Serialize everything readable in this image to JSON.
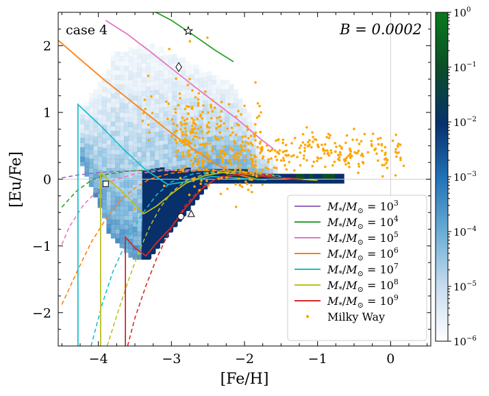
{
  "chart_data": {
    "type": "scatter",
    "panel_label": "case 4",
    "annotation": "B = 0.0002",
    "xlabel": "[Fe/H]",
    "ylabel": "[Eu/Fe]",
    "xlim": [
      -4.55,
      0.55
    ],
    "ylim": [
      -2.5,
      2.5
    ],
    "xticks": [
      -4,
      -3,
      -2,
      -1,
      0
    ],
    "yticks": [
      -2,
      -1,
      0,
      1,
      2
    ],
    "reference_lines": {
      "x": 0,
      "y": 0
    },
    "colorbar": {
      "scale": "log",
      "min": 1e-06,
      "max": 1,
      "ticks": [
        "10^0",
        "10^-1",
        "10^-2",
        "10^-3",
        "10^-4",
        "10^-5",
        "10^-6"
      ],
      "colormap": [
        "#ffffff",
        "#c6dbef",
        "#6baed6",
        "#2171b5",
        "#08306b",
        "#0b4d28",
        "#0a7a1c"
      ]
    },
    "series": [
      {
        "name": "M*/M⊙ = 10^3",
        "label_sup": "3",
        "color": "#9467bd",
        "solid": [],
        "dashed": [
          [
            -4.5,
            0.02
          ],
          [
            -4.3,
            0.06
          ],
          [
            -4.0,
            0.1
          ],
          [
            -3.7,
            0.12
          ],
          [
            -3.3,
            0.13
          ],
          [
            -2.8,
            0.13
          ],
          [
            -2.3,
            0.12
          ],
          [
            -1.9,
            0.08
          ],
          [
            -1.6,
            0.05
          ]
        ]
      },
      {
        "name": "M*/M⊙ = 10^4",
        "label_sup": "4",
        "color": "#2ca02c",
        "solid": [
          [
            -3.3,
            2.55
          ],
          [
            -3.0,
            2.38
          ],
          [
            -2.7,
            2.16
          ],
          [
            -2.4,
            1.93
          ],
          [
            -2.15,
            1.76
          ]
        ],
        "dashed": [
          [
            -4.5,
            -0.42
          ],
          [
            -4.3,
            -0.18
          ],
          [
            -4.1,
            -0.02
          ],
          [
            -3.9,
            0.07
          ],
          [
            -3.6,
            0.12
          ],
          [
            -3.2,
            0.14
          ],
          [
            -2.7,
            0.14
          ],
          [
            -2.2,
            0.13
          ],
          [
            -1.8,
            0.09
          ],
          [
            -1.5,
            0.05
          ]
        ]
      },
      {
        "name": "M*/M⊙ = 10^5",
        "label_sup": "5",
        "color": "#e377c2",
        "solid": [
          [
            -3.9,
            2.38
          ],
          [
            -3.6,
            2.17
          ],
          [
            -3.3,
            1.92
          ],
          [
            -3.0,
            1.66
          ],
          [
            -2.7,
            1.4
          ],
          [
            -2.4,
            1.15
          ],
          [
            -2.1,
            0.9
          ],
          [
            -1.8,
            0.62
          ],
          [
            -1.6,
            0.45
          ]
        ],
        "dashed": [
          [
            -4.5,
            -0.98
          ],
          [
            -4.4,
            -0.72
          ],
          [
            -4.2,
            -0.38
          ],
          [
            -4.0,
            -0.16
          ],
          [
            -3.8,
            -0.02
          ],
          [
            -3.5,
            0.08
          ],
          [
            -3.1,
            0.13
          ],
          [
            -2.6,
            0.14
          ],
          [
            -2.1,
            0.12
          ],
          [
            -1.6,
            0.07
          ]
        ]
      },
      {
        "name": "M*/M⊙ = 10^6",
        "label_sup": "6",
        "color": "#ff7f0e",
        "solid": [
          [
            -4.55,
            2.08
          ],
          [
            -4.2,
            1.75
          ],
          [
            -3.9,
            1.47
          ],
          [
            -3.6,
            1.21
          ],
          [
            -3.3,
            0.95
          ],
          [
            -3.0,
            0.69
          ],
          [
            -2.7,
            0.45
          ],
          [
            -2.4,
            0.23
          ],
          [
            -2.1,
            0.07
          ],
          [
            -1.8,
            -0.01
          ]
        ],
        "dashed": [
          [
            -4.5,
            -1.88
          ],
          [
            -4.3,
            -1.4
          ],
          [
            -4.1,
            -0.95
          ],
          [
            -3.9,
            -0.6
          ],
          [
            -3.7,
            -0.32
          ],
          [
            -3.5,
            -0.13
          ],
          [
            -3.3,
            0.0
          ],
          [
            -3.0,
            0.09
          ],
          [
            -2.6,
            0.13
          ],
          [
            -2.1,
            0.12
          ],
          [
            -1.6,
            0.06
          ]
        ]
      },
      {
        "name": "M*/M⊙ = 10^7",
        "label_sup": "7",
        "color": "#17becf",
        "solid": [
          [
            -4.28,
            -2.5
          ],
          [
            -4.28,
            1.12
          ],
          [
            -3.95,
            0.78
          ],
          [
            -3.65,
            0.44
          ],
          [
            -3.35,
            0.14
          ],
          [
            -3.05,
            -0.08
          ],
          [
            -2.75,
            -0.03
          ],
          [
            -2.45,
            0.04
          ],
          [
            -2.15,
            0.02
          ],
          [
            -1.7,
            -0.01
          ]
        ],
        "dashed": [
          [
            -4.1,
            -2.5
          ],
          [
            -3.95,
            -1.88
          ],
          [
            -3.8,
            -1.38
          ],
          [
            -3.6,
            -0.9
          ],
          [
            -3.4,
            -0.52
          ],
          [
            -3.2,
            -0.23
          ],
          [
            -3.0,
            -0.04
          ],
          [
            -2.7,
            0.08
          ],
          [
            -2.3,
            0.12
          ],
          [
            -1.9,
            0.09
          ],
          [
            -1.5,
            0.04
          ]
        ]
      },
      {
        "name": "M*/M⊙ = 10^8",
        "label_sup": "8",
        "color": "#bcbd22",
        "solid": [
          [
            -3.97,
            -2.5
          ],
          [
            -3.97,
            0.09
          ],
          [
            -3.7,
            -0.16
          ],
          [
            -3.55,
            -0.32
          ],
          [
            -3.38,
            -0.52
          ],
          [
            -3.2,
            -0.4
          ],
          [
            -3.0,
            -0.22
          ],
          [
            -2.8,
            -0.06
          ],
          [
            -2.55,
            0.05
          ],
          [
            -2.3,
            0.1
          ],
          [
            -2.0,
            0.07
          ],
          [
            -1.5,
            0.02
          ],
          [
            -1.0,
            -0.02
          ]
        ],
        "dashed": [
          [
            -3.88,
            -2.5
          ],
          [
            -3.75,
            -2.05
          ],
          [
            -3.6,
            -1.55
          ],
          [
            -3.45,
            -1.1
          ],
          [
            -3.3,
            -0.72
          ],
          [
            -3.15,
            -0.42
          ],
          [
            -3.0,
            -0.2
          ],
          [
            -2.8,
            -0.02
          ],
          [
            -2.5,
            0.09
          ],
          [
            -2.1,
            0.11
          ],
          [
            -1.6,
            0.06
          ]
        ]
      },
      {
        "name": "M*/M⊙ = 10^9",
        "label_sup": "9",
        "color": "#d62728",
        "solid": [
          [
            -3.63,
            -2.5
          ],
          [
            -3.63,
            -0.87
          ],
          [
            -3.5,
            -1.03
          ],
          [
            -3.35,
            -1.15
          ],
          [
            -3.2,
            -0.95
          ],
          [
            -3.0,
            -0.72
          ],
          [
            -2.8,
            -0.42
          ],
          [
            -2.6,
            -0.16
          ],
          [
            -2.4,
            0.0
          ],
          [
            -2.1,
            0.07
          ],
          [
            -1.7,
            0.04
          ],
          [
            -1.2,
            -0.01
          ]
        ],
        "dashed": [
          [
            -3.6,
            -2.5
          ],
          [
            -3.5,
            -2.08
          ],
          [
            -3.35,
            -1.6
          ],
          [
            -3.2,
            -1.18
          ],
          [
            -3.0,
            -0.72
          ],
          [
            -2.8,
            -0.38
          ],
          [
            -2.6,
            -0.14
          ],
          [
            -2.35,
            0.03
          ],
          [
            -2.0,
            0.1
          ],
          [
            -1.6,
            0.06
          ]
        ]
      }
    ],
    "milky_way_label": "Milky Way",
    "milky_way_color": "#ffa500",
    "special_stars": [
      {
        "marker": "star",
        "x": -2.77,
        "y": 2.22
      },
      {
        "marker": "diamond",
        "x": -2.9,
        "y": 1.68
      },
      {
        "marker": "square",
        "x": -3.9,
        "y": -0.07
      },
      {
        "marker": "circle",
        "x": -2.87,
        "y": -0.56
      },
      {
        "marker": "triangle",
        "x": -2.73,
        "y": -0.52
      }
    ]
  }
}
